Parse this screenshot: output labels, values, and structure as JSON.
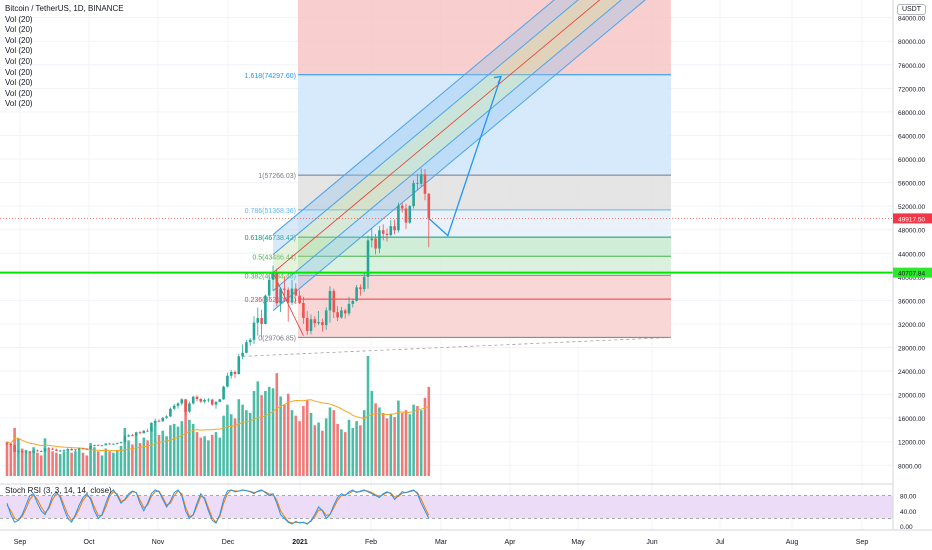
{
  "header": {
    "title": "Bitcoin / TetherUS, 1D, BINANCE",
    "indicators": [
      "Vol (20)",
      "Vol (20)",
      "Vol (20)",
      "Vol (20)",
      "Vol (20)",
      "Vol (20)",
      "Vol (20)",
      "Vol (20)",
      "Vol (20)"
    ]
  },
  "currency_badge": "USDT",
  "stoch_label": "Stoch RSI (3, 3, 14, 14, close)",
  "colors": {
    "up": "#26a69a",
    "down": "#ef5350",
    "fib_top": "#f7c6c6",
    "fib_1618": "#cfe6fb",
    "fib_1_0786": "#e0e0e0",
    "fib_0786_0618": "#e8eef7",
    "fib_green": "#c8ebd0",
    "fib_red": "#f9d0d0",
    "channel": "#4aa3e8",
    "green_line": "#00e600",
    "price_line": "#ef5350",
    "stoch_bg": "#e9d6f7",
    "stoch_k": "#2196f3",
    "stoch_d": "#f57c00"
  },
  "chart_data": {
    "type": "candlestick",
    "symbol": "Bitcoin / TetherUS",
    "interval": "1D",
    "exchange": "BINANCE",
    "x_ticks": [
      "Sep",
      "Oct",
      "Nov",
      "Dec",
      "2021",
      "Feb",
      "Mar",
      "Apr",
      "May",
      "Jun",
      "Jul",
      "Aug",
      "Sep"
    ],
    "y_ticks": [
      "84000.00",
      "80000.00",
      "76000.00",
      "72000.00",
      "68000.00",
      "64000.00",
      "60000.00",
      "56000.00",
      "52000.00",
      "48000.00",
      "44000.00",
      "40000.00",
      "36000.00",
      "32000.00",
      "28000.00",
      "24000.00",
      "20000.00",
      "16000.00",
      "12000.00",
      "8000.00"
    ],
    "y_range": [
      5500,
      87000
    ],
    "current_price_label": "49917.50",
    "current_price": 49917.5,
    "green_level_label": "40707.84",
    "green_level": 40707.84,
    "fib_levels": [
      {
        "label": "1.618(74297.60)",
        "price": 74297.6
      },
      {
        "label": "1(57266.03)",
        "price": 57266.03
      },
      {
        "label": "0.786(51368.36)",
        "price": 51368.36
      },
      {
        "label": "0.618(46738.42)",
        "price": 46738.42
      },
      {
        "label": "0.5(43486.44)",
        "price": 43486.44
      },
      {
        "label": "0.382(40234.45)",
        "price": 40234.45
      },
      {
        "label": "0.236(36210.81)",
        "price": 36210.81
      },
      {
        "label": "0(29706.85)",
        "price": 29706.85
      }
    ],
    "stoch_y_ticks": [
      "80.00",
      "40.00",
      "0.00"
    ],
    "stoch_bands": [
      80,
      20
    ],
    "candles_ohlc": [
      [
        11700,
        11900,
        11500,
        11650
      ],
      [
        11650,
        11800,
        11300,
        11400
      ],
      [
        11400,
        11500,
        10200,
        10300
      ],
      [
        10300,
        10600,
        10000,
        10450
      ],
      [
        10450,
        10500,
        10100,
        10200
      ],
      [
        10200,
        10450,
        9900,
        10350
      ],
      [
        10350,
        10400,
        10050,
        10150
      ],
      [
        10150,
        10600,
        10100,
        10500
      ],
      [
        10500,
        10700,
        10300,
        10400
      ],
      [
        10400,
        10550,
        10250,
        10330
      ],
      [
        10330,
        10950,
        10300,
        10900
      ],
      [
        10900,
        11100,
        10700,
        10800
      ],
      [
        10800,
        11000,
        10600,
        10680
      ],
      [
        10680,
        10800,
        10400,
        10450
      ],
      [
        10450,
        10600,
        10250,
        10500
      ],
      [
        10500,
        10700,
        10400,
        10600
      ],
      [
        10600,
        10900,
        10500,
        10780
      ],
      [
        10780,
        10900,
        10500,
        10550
      ],
      [
        10550,
        10750,
        10300,
        10700
      ],
      [
        10700,
        10950,
        10600,
        10850
      ],
      [
        10850,
        11000,
        10700,
        10780
      ],
      [
        10780,
        10900,
        10600,
        10700
      ],
      [
        10700,
        11350,
        10650,
        11300
      ],
      [
        11300,
        11500,
        11200,
        11450
      ],
      [
        11450,
        11550,
        11300,
        11350
      ],
      [
        11350,
        11450,
        11200,
        11400
      ],
      [
        11400,
        11750,
        11350,
        11700
      ],
      [
        11700,
        11800,
        11500,
        11550
      ],
      [
        11550,
        11700,
        11450,
        11650
      ],
      [
        11650,
        11850,
        11550,
        11750
      ],
      [
        11750,
        12000,
        11700,
        11920
      ],
      [
        11920,
        13200,
        11900,
        12900
      ],
      [
        12900,
        13250,
        12800,
        13100
      ],
      [
        13100,
        13300,
        12900,
        13050
      ],
      [
        13050,
        13700,
        13000,
        13600
      ],
      [
        13600,
        13800,
        13300,
        13450
      ],
      [
        13450,
        14000,
        13400,
        13850
      ],
      [
        13850,
        14200,
        13700,
        13750
      ],
      [
        13750,
        15300,
        13700,
        15200
      ],
      [
        15200,
        15900,
        14700,
        15550
      ],
      [
        15550,
        15800,
        15300,
        15450
      ],
      [
        15450,
        16200,
        15400,
        16050
      ],
      [
        16050,
        16500,
        15900,
        16300
      ],
      [
        16300,
        17800,
        16200,
        17600
      ],
      [
        17600,
        18400,
        17400,
        18100
      ],
      [
        18100,
        18700,
        17600,
        18500
      ],
      [
        18500,
        19400,
        18200,
        19200
      ],
      [
        19200,
        19300,
        16500,
        17100
      ],
      [
        17100,
        18800,
        16900,
        18500
      ],
      [
        18500,
        19800,
        18300,
        19650
      ],
      [
        19650,
        19900,
        18900,
        19250
      ],
      [
        19250,
        19400,
        18600,
        18800
      ],
      [
        18800,
        19350,
        18500,
        19100
      ],
      [
        19100,
        19400,
        18700,
        19150
      ],
      [
        19150,
        19300,
        18100,
        18300
      ],
      [
        18300,
        18900,
        17600,
        18750
      ],
      [
        18750,
        19300,
        18700,
        19200
      ],
      [
        19200,
        21500,
        19100,
        21350
      ],
      [
        21350,
        23700,
        21200,
        23200
      ],
      [
        23200,
        24200,
        22700,
        23850
      ],
      [
        23850,
        24100,
        22800,
        23500
      ],
      [
        23500,
        26900,
        23400,
        26500
      ],
      [
        26500,
        28500,
        26000,
        27100
      ],
      [
        27100,
        29300,
        27000,
        28900
      ],
      [
        28900,
        29600,
        28300,
        29300
      ],
      [
        29300,
        33300,
        28600,
        32200
      ],
      [
        32200,
        34800,
        30000,
        33000
      ],
      [
        33000,
        34400,
        29800,
        32000
      ],
      [
        32000,
        37000,
        31900,
        36800
      ],
      [
        36800,
        40300,
        36400,
        39500
      ],
      [
        39500,
        41900,
        37600,
        40700
      ],
      [
        40700,
        41400,
        35000,
        35500
      ],
      [
        35500,
        38200,
        34000,
        38000
      ],
      [
        38000,
        40100,
        36000,
        37800
      ],
      [
        37800,
        38200,
        32400,
        35600
      ],
      [
        35600,
        39500,
        35200,
        38000
      ],
      [
        38000,
        38900,
        35400,
        36800
      ],
      [
        36800,
        37700,
        35400,
        35550
      ],
      [
        35550,
        36600,
        32000,
        33000
      ],
      [
        33000,
        34200,
        30100,
        30800
      ],
      [
        30800,
        33600,
        30200,
        32800
      ],
      [
        32800,
        33300,
        31400,
        32100
      ],
      [
        32100,
        34200,
        31800,
        32300
      ],
      [
        32300,
        32900,
        30700,
        31800
      ],
      [
        31800,
        34800,
        31000,
        34300
      ],
      [
        34300,
        38400,
        32200,
        37600
      ],
      [
        37600,
        38000,
        33000,
        34000
      ],
      [
        34000,
        35000,
        32500,
        33100
      ],
      [
        33100,
        34900,
        32900,
        34300
      ],
      [
        34300,
        34600,
        32900,
        33800
      ],
      [
        33800,
        36600,
        33400,
        35400
      ],
      [
        35400,
        36300,
        34800,
        35900
      ],
      [
        35900,
        38600,
        35800,
        38200
      ],
      [
        38200,
        38700,
        36800,
        37900
      ],
      [
        37900,
        40800,
        37400,
        40000
      ],
      [
        40000,
        47000,
        38000,
        46200
      ],
      [
        46200,
        48200,
        45000,
        46500
      ],
      [
        46500,
        47300,
        43800,
        44800
      ],
      [
        44800,
        48600,
        44000,
        47900
      ],
      [
        47900,
        48900,
        46200,
        47300
      ],
      [
        47300,
        48200,
        46000,
        47100
      ],
      [
        47100,
        49600,
        46900,
        48600
      ],
      [
        48600,
        49700,
        47200,
        47900
      ],
      [
        47900,
        52600,
        47500,
        52100
      ],
      [
        52100,
        52600,
        50900,
        51600
      ],
      [
        51600,
        52400,
        48100,
        49200
      ],
      [
        49200,
        52200,
        49000,
        52000
      ],
      [
        52000,
        56400,
        51600,
        55900
      ],
      [
        55900,
        57500,
        54700,
        55800
      ],
      [
        55800,
        58400,
        55300,
        57400
      ],
      [
        57400,
        58300,
        53000,
        54100
      ],
      [
        54100,
        54200,
        45000,
        49917.5
      ]
    ],
    "volumes_k": [
      50,
      45,
      70,
      55,
      40,
      38,
      36,
      42,
      34,
      30,
      55,
      40,
      36,
      34,
      32,
      36,
      38,
      34,
      36,
      40,
      34,
      30,
      48,
      42,
      36,
      30,
      40,
      36,
      34,
      38,
      44,
      70,
      52,
      46,
      60,
      48,
      56,
      52,
      70,
      80,
      60,
      66,
      58,
      74,
      76,
      72,
      80,
      110,
      82,
      76,
      64,
      56,
      58,
      52,
      60,
      64,
      56,
      88,
      104,
      90,
      84,
      112,
      104,
      96,
      92,
      124,
      138,
      118,
      124,
      130,
      128,
      150,
      116,
      104,
      120,
      96,
      88,
      80,
      102,
      110,
      92,
      74,
      78,
      66,
      84,
      100,
      96,
      76,
      68,
      64,
      82,
      70,
      80,
      74,
      96,
      175,
      124,
      106,
      100,
      92,
      84,
      90,
      86,
      110,
      92,
      96,
      90,
      104,
      102,
      96,
      114,
      130
    ],
    "volume_ma_k": 75,
    "pitchfork": {
      "anchor_date_index": 70,
      "anchor_price": 40700,
      "projection_price": 74297.6
    },
    "projection_arrow": [
      [
        111,
        49917.5
      ],
      [
        116,
        47000
      ],
      [
        130,
        74000
      ]
    ],
    "stoch_k": [
      60,
      30,
      10,
      15,
      30,
      55,
      80,
      85,
      60,
      40,
      30,
      50,
      80,
      90,
      75,
      45,
      20,
      10,
      30,
      55,
      75,
      85,
      70,
      40,
      20,
      30,
      60,
      85,
      95,
      80,
      60,
      70,
      85,
      92,
      88,
      60,
      40,
      60,
      85,
      95,
      90,
      70,
      50,
      65,
      88,
      95,
      80,
      40,
      20,
      30,
      60,
      85,
      70,
      40,
      15,
      8,
      30,
      70,
      92,
      95,
      90,
      92,
      95,
      93,
      90,
      85,
      92,
      95,
      88,
      80,
      85,
      60,
      30,
      20,
      10,
      5,
      12,
      8,
      10,
      5,
      15,
      30,
      50,
      40,
      20,
      30,
      55,
      75,
      85,
      80,
      90,
      95,
      88,
      92,
      95,
      90,
      85,
      80,
      75,
      85,
      90,
      85,
      70,
      80,
      90,
      88,
      92,
      95,
      85,
      60,
      40,
      20
    ],
    "stoch_d": [
      55,
      40,
      20,
      15,
      25,
      45,
      70,
      82,
      70,
      50,
      35,
      45,
      70,
      85,
      80,
      55,
      30,
      15,
      25,
      45,
      68,
      80,
      75,
      50,
      28,
      28,
      50,
      78,
      90,
      85,
      65,
      68,
      80,
      90,
      88,
      68,
      48,
      55,
      78,
      90,
      92,
      75,
      55,
      60,
      80,
      92,
      85,
      50,
      25,
      28,
      52,
      78,
      75,
      48,
      22,
      10,
      25,
      60,
      85,
      94,
      92,
      92,
      94,
      93,
      91,
      88,
      90,
      93,
      90,
      84,
      84,
      68,
      40,
      25,
      12,
      8,
      10,
      9,
      9,
      7,
      12,
      25,
      42,
      42,
      28,
      30,
      48,
      68,
      80,
      82,
      86,
      92,
      90,
      90,
      93,
      92,
      88,
      82,
      78,
      82,
      88,
      87,
      76,
      78,
      86,
      88,
      90,
      93,
      88,
      70,
      48,
      28
    ]
  }
}
